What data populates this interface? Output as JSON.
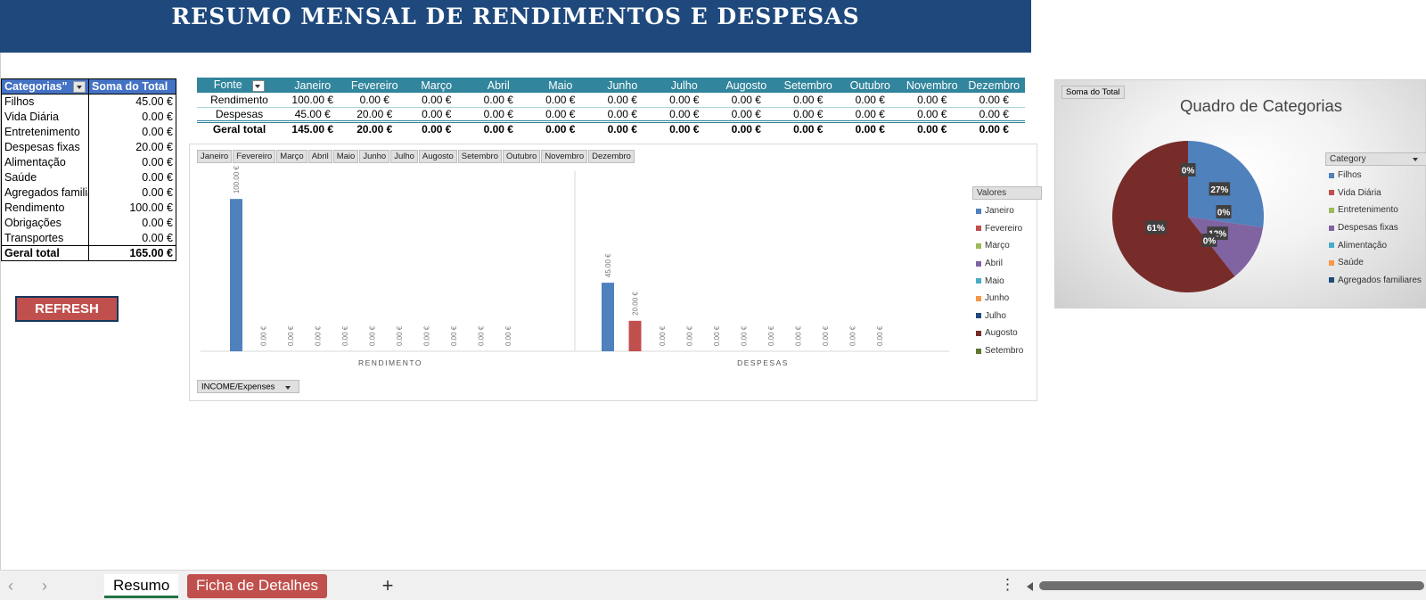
{
  "title": "RESUMO MENSAL DE RENDIMENTOS E DESPESAS",
  "categories_table": {
    "header": [
      "Categorias\"",
      "Soma do Total"
    ],
    "rows": [
      {
        "label": "Filhos",
        "value": "45.00 €"
      },
      {
        "label": "Vida Diária",
        "value": "0.00 €"
      },
      {
        "label": "Entretenimento",
        "value": "0.00 €"
      },
      {
        "label": "Despesas fixas",
        "value": "20.00 €"
      },
      {
        "label": "Alimentação",
        "value": "0.00 €"
      },
      {
        "label": "Saúde",
        "value": "0.00 €"
      },
      {
        "label": "Agregados familiares",
        "value": "0.00 €"
      },
      {
        "label": "Rendimento",
        "value": "100.00 €"
      },
      {
        "label": "Obrigações",
        "value": "0.00 €"
      },
      {
        "label": "Transportes",
        "value": "0.00 €"
      }
    ],
    "total": {
      "label": "Geral total",
      "value": "165.00 €"
    }
  },
  "refresh_label": "REFRESH",
  "source_table": {
    "header_first": "Fonte",
    "months": [
      "Janeiro",
      "Fevereiro",
      "Março",
      "Abril",
      "Maio",
      "Junho",
      "Julho",
      "Augosto",
      "Setembro",
      "Outubro",
      "Novembro",
      "Dezembro"
    ],
    "rows": [
      {
        "label": "Rendimento",
        "values": [
          "100.00 €",
          "0.00 €",
          "0.00 €",
          "0.00 €",
          "0.00 €",
          "0.00 €",
          "0.00 €",
          "0.00 €",
          "0.00 €",
          "0.00 €",
          "0.00 €",
          "0.00 €"
        ]
      },
      {
        "label": "Despesas",
        "values": [
          "45.00 €",
          "20.00 €",
          "0.00 €",
          "0.00 €",
          "0.00 €",
          "0.00 €",
          "0.00 €",
          "0.00 €",
          "0.00 €",
          "0.00 €",
          "0.00 €",
          "0.00 €"
        ]
      }
    ],
    "total": {
      "label": "Geral total",
      "values": [
        "145.00 €",
        "20.00 €",
        "0.00 €",
        "0.00 €",
        "0.00 €",
        "0.00 €",
        "0.00 €",
        "0.00 €",
        "0.00 €",
        "0.00 €",
        "0.00 €",
        "0.00 €"
      ]
    }
  },
  "bar_chart": {
    "month_buttons": [
      "Janeiro",
      "Fevereiro",
      "Março",
      "Abril",
      "Maio",
      "Junho",
      "Julho",
      "Augosto",
      "Setembro",
      "Outubro",
      "Novembro",
      "Dezembro"
    ],
    "legend_title": "Valores",
    "legend_items": [
      "Janeiro",
      "Fevereiro",
      "Março",
      "Abril",
      "Maio",
      "Junho",
      "Julho",
      "Augosto",
      "Setembro"
    ],
    "filter_button": "INCOME/Expenses"
  },
  "pie_chart": {
    "title": "Quadro de Categorias",
    "field_button": "Soma do Total",
    "legend_title": "Category",
    "legend_items": [
      "Filhos",
      "Vida Diária",
      "Entretenimento",
      "Despesas fixas",
      "Alimentação",
      "Saúde",
      "Agregados familiares"
    ]
  },
  "series_colors": [
    "#4f81bd",
    "#c0504d",
    "#9bbb59",
    "#8064a2",
    "#4bacc6",
    "#f79646",
    "#1f497d",
    "#772c2a",
    "#5f7530"
  ],
  "chart_data": [
    {
      "type": "bar",
      "categories": [
        "RENDIMENTO",
        "DESPESAS"
      ],
      "series": [
        {
          "name": "Janeiro",
          "values": [
            100,
            45
          ]
        },
        {
          "name": "Fevereiro",
          "values": [
            0,
            20
          ]
        },
        {
          "name": "Março",
          "values": [
            0,
            0
          ]
        },
        {
          "name": "Abril",
          "values": [
            0,
            0
          ]
        },
        {
          "name": "Maio",
          "values": [
            0,
            0
          ]
        },
        {
          "name": "Junho",
          "values": [
            0,
            0
          ]
        },
        {
          "name": "Julho",
          "values": [
            0,
            0
          ]
        },
        {
          "name": "Augosto",
          "values": [
            0,
            0
          ]
        },
        {
          "name": "Setembro",
          "values": [
            0,
            0
          ]
        },
        {
          "name": "Outubro",
          "values": [
            0,
            0
          ]
        },
        {
          "name": "Novembro",
          "values": [
            0,
            0
          ]
        },
        {
          "name": "Dezembro",
          "values": [
            0,
            0
          ]
        }
      ],
      "data_labels": [
        [
          "100.00 €",
          "0.00 €",
          "0.00 €",
          "0.00 €",
          "0.00 €",
          "0.00 €",
          "0.00 €",
          "0.00 €",
          "0.00 €",
          "0.00 €",
          "0.00 €",
          null
        ],
        [
          "45.00 €",
          "20.00 €",
          "0.00 €",
          "0.00 €",
          "0.00 €",
          "0.00 €",
          "0.00 €",
          "0.00 €",
          "0.00 €",
          "0.00 €",
          "0.00 €",
          null
        ]
      ],
      "ylim": [
        0,
        120
      ],
      "grid": false,
      "legend": "right"
    },
    {
      "type": "pie",
      "title": "Quadro de Categorias",
      "slices": [
        {
          "label": "Filhos",
          "value": 45,
          "pct_label": "27%"
        },
        {
          "label": "Vida Diária",
          "value": 0,
          "pct_label": "0%"
        },
        {
          "label": "Entretenimento",
          "value": 0,
          "pct_label": "0%"
        },
        {
          "label": "Despesas fixas",
          "value": 20,
          "pct_label": "12%"
        },
        {
          "label": "Alimentação",
          "value": 0,
          "pct_label": "0%"
        },
        {
          "label": "Saúde",
          "value": 0,
          "pct_label": "0%"
        },
        {
          "label": "Agregados familiares",
          "value": 0,
          "pct_label": "0%"
        },
        {
          "label": "Rendimento",
          "value": 100,
          "pct_label": "61%"
        }
      ],
      "legend": "right"
    }
  ],
  "sheet_tabs": [
    "Resumo",
    "Ficha de Detalhes"
  ],
  "add_sheet_label": "+",
  "nav_prev": "‹",
  "nav_next": "›",
  "more_label": "⋮"
}
